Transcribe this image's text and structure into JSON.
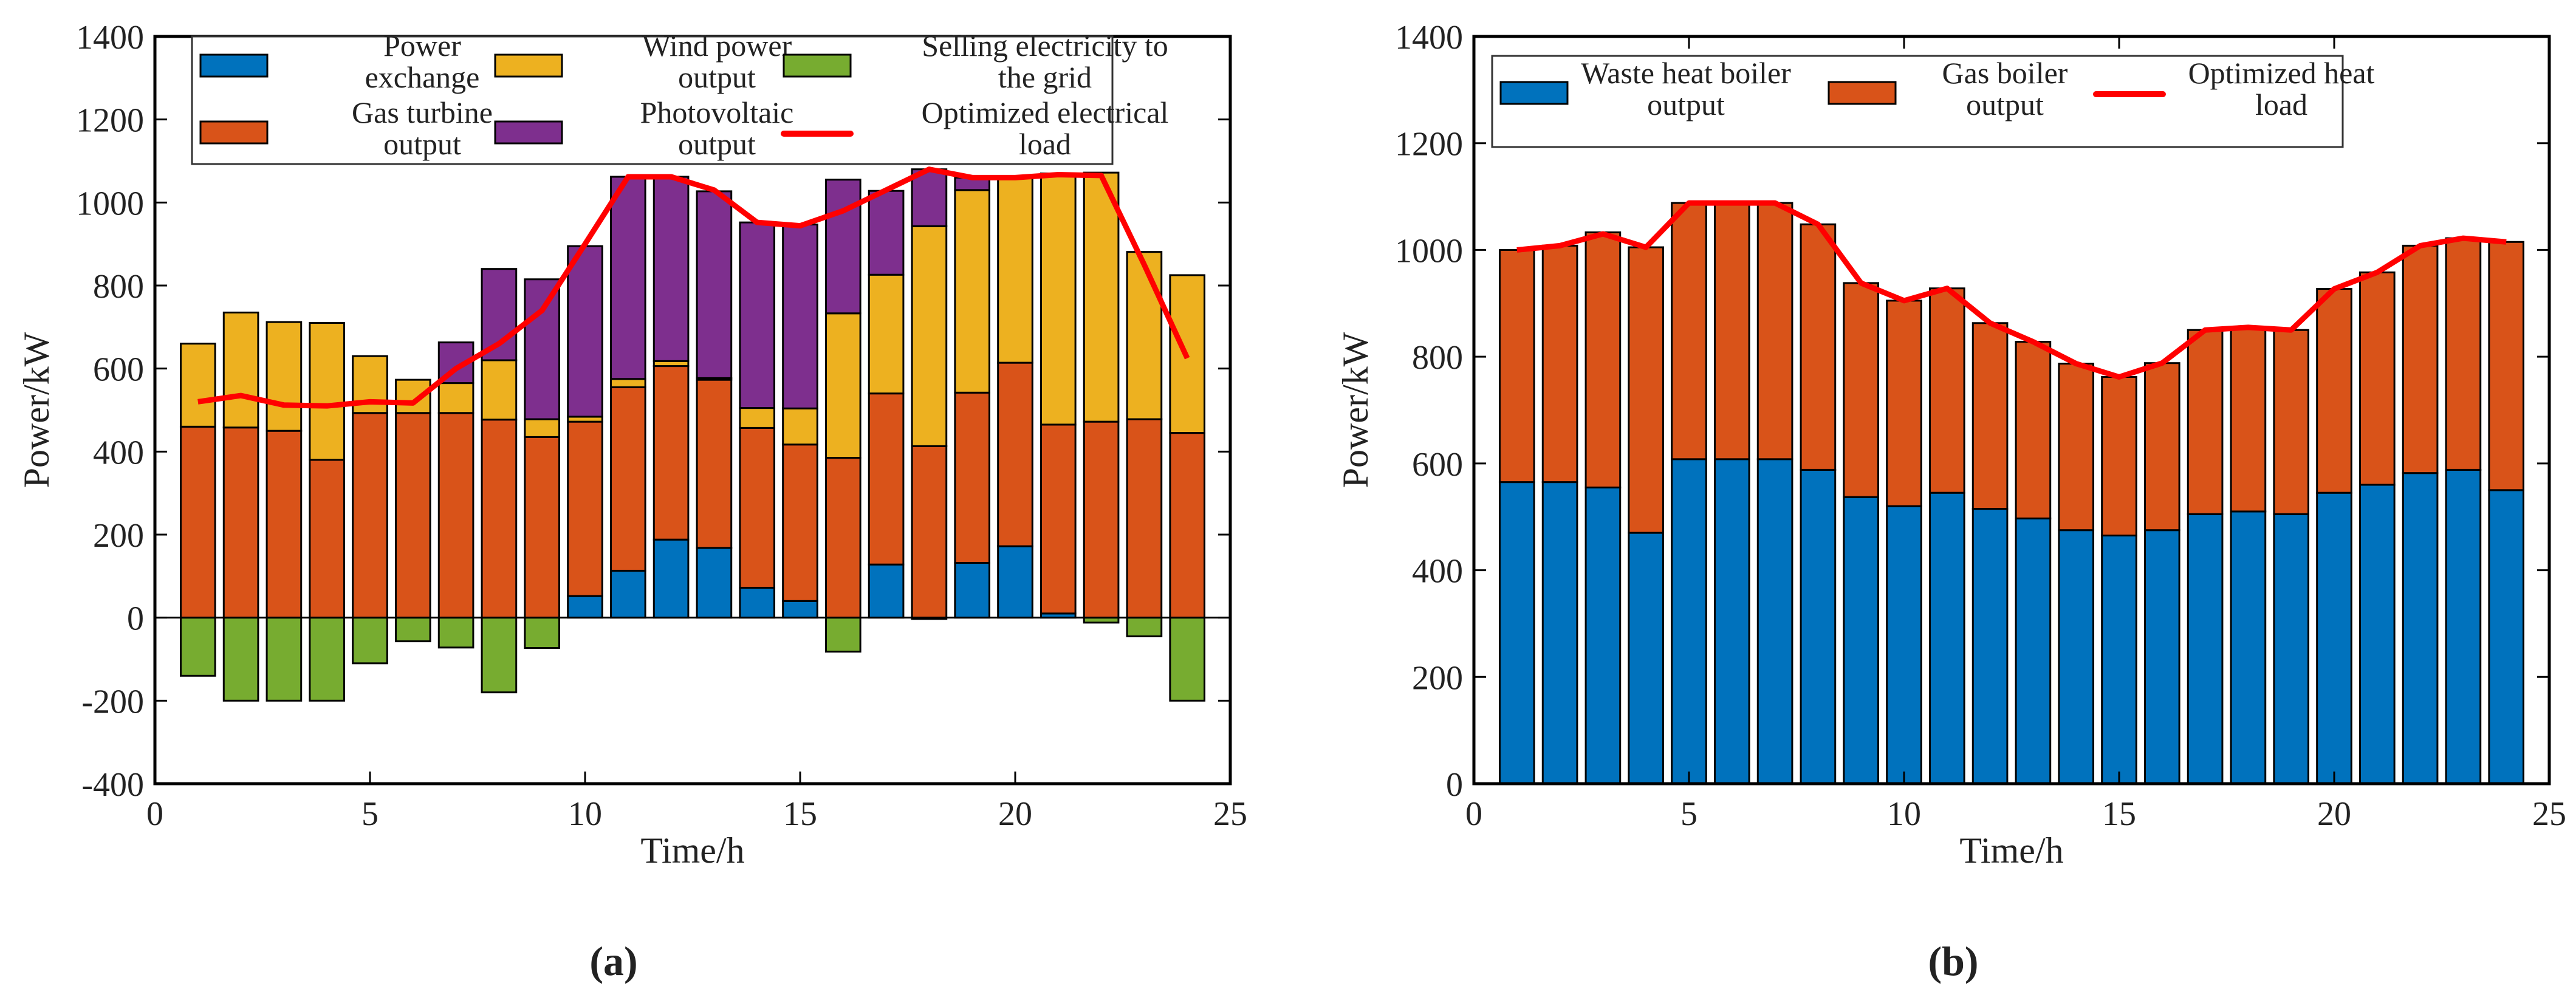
{
  "chart_data": [
    {
      "id": "a",
      "type": "bar",
      "stacked": true,
      "caption": "(a)",
      "xlabel": "Time/h",
      "ylabel": "Power/kW",
      "xlim": [
        0,
        25
      ],
      "ylim": [
        -400,
        1400
      ],
      "xticks": [
        0,
        5,
        10,
        15,
        20,
        25
      ],
      "yticks": [
        -400,
        -200,
        0,
        200,
        400,
        600,
        800,
        1000,
        1200,
        1400
      ],
      "legend_position": "top",
      "x": [
        1,
        2,
        3,
        4,
        5,
        6,
        7,
        8,
        9,
        10,
        11,
        12,
        13,
        14,
        15,
        16,
        17,
        18,
        19,
        20,
        21,
        22,
        23,
        24
      ],
      "series": [
        {
          "name": "Power exchange",
          "legend": [
            "Power",
            "exchange"
          ],
          "color": "#0072BD",
          "values": [
            0,
            0,
            0,
            0,
            0,
            0,
            0,
            0,
            0,
            52,
            113,
            188,
            168,
            72,
            40,
            0,
            128,
            -3,
            132,
            172,
            10,
            0,
            0,
            0
          ]
        },
        {
          "name": "Gas turbine output",
          "legend": [
            "Gas turbine",
            "output"
          ],
          "color": "#D95319",
          "values": [
            460,
            458,
            450,
            380,
            493,
            493,
            493,
            477,
            435,
            420,
            442,
            418,
            405,
            385,
            377,
            385,
            412,
            413,
            410,
            442,
            455,
            472,
            478,
            445
          ]
        },
        {
          "name": "Wind power output",
          "legend": [
            "Wind power",
            "output"
          ],
          "color": "#EDB120",
          "values": [
            200,
            277,
            262,
            330,
            137,
            80,
            72,
            143,
            43,
            12,
            20,
            12,
            4,
            48,
            87,
            348,
            286,
            530,
            488,
            446,
            605,
            600,
            403,
            380
          ]
        },
        {
          "name": "Photovoltaic output",
          "legend": [
            "Photovoltaic",
            "output"
          ],
          "color": "#7E2F8E",
          "values": [
            0,
            0,
            0,
            0,
            0,
            0,
            98,
            220,
            337,
            411,
            487,
            444,
            450,
            447,
            443,
            322,
            202,
            137,
            30,
            0,
            0,
            0,
            0,
            0
          ]
        },
        {
          "name": "Selling electricity to the grid",
          "legend": [
            "Selling electricity to",
            "the grid"
          ],
          "color": "#77AC30",
          "values": [
            -140,
            -200,
            -200,
            -200,
            -110,
            -57,
            -72,
            -180,
            -73,
            0,
            0,
            0,
            0,
            0,
            0,
            -82,
            0,
            0,
            0,
            0,
            0,
            -12,
            -45,
            -200
          ]
        }
      ],
      "line": {
        "name": "Optimized electrical load",
        "legend": [
          "Optimized electrical",
          "load"
        ],
        "color": "#FF0000",
        "values": [
          520,
          535,
          512,
          510,
          520,
          517,
          600,
          660,
          740,
          900,
          1062,
          1062,
          1030,
          952,
          944,
          980,
          1030,
          1080,
          1060,
          1060,
          1067,
          1065,
          850,
          625
        ]
      }
    },
    {
      "id": "b",
      "type": "bar",
      "stacked": true,
      "caption": "(b)",
      "xlabel": "Time/h",
      "ylabel": "Power/kW",
      "xlim": [
        0,
        25
      ],
      "ylim": [
        0,
        1400
      ],
      "xticks": [
        0,
        5,
        10,
        15,
        20,
        25
      ],
      "yticks": [
        0,
        200,
        400,
        600,
        800,
        1000,
        1200,
        1400
      ],
      "legend_position": "top",
      "x": [
        1,
        2,
        3,
        4,
        5,
        6,
        7,
        8,
        9,
        10,
        11,
        12,
        13,
        14,
        15,
        16,
        17,
        18,
        19,
        20,
        21,
        22,
        23,
        24
      ],
      "series": [
        {
          "name": "Waste heat boiler output",
          "legend": [
            "Waste heat boiler",
            "output"
          ],
          "color": "#0072BD",
          "values": [
            565,
            565,
            555,
            470,
            608,
            608,
            608,
            588,
            537,
            520,
            545,
            515,
            497,
            475,
            465,
            475,
            505,
            510,
            505,
            545,
            560,
            582,
            588,
            550
          ]
        },
        {
          "name": "Gas boiler output",
          "legend": [
            "Gas boiler",
            "output"
          ],
          "color": "#D95319",
          "values": [
            435,
            443,
            478,
            535,
            480,
            480,
            480,
            460,
            401,
            385,
            383,
            348,
            331,
            312,
            297,
            313,
            345,
            345,
            345,
            382,
            398,
            426,
            434,
            465
          ]
        }
      ],
      "line": {
        "name": "Optimized heat load",
        "legend": [
          "Optimized heat",
          "load"
        ],
        "color": "#FF0000",
        "values": [
          1000,
          1008,
          1030,
          1005,
          1088,
          1088,
          1088,
          1048,
          938,
          905,
          928,
          863,
          828,
          787,
          762,
          788,
          850,
          855,
          850,
          927,
          958,
          1008,
          1022,
          1015
        ]
      }
    }
  ]
}
